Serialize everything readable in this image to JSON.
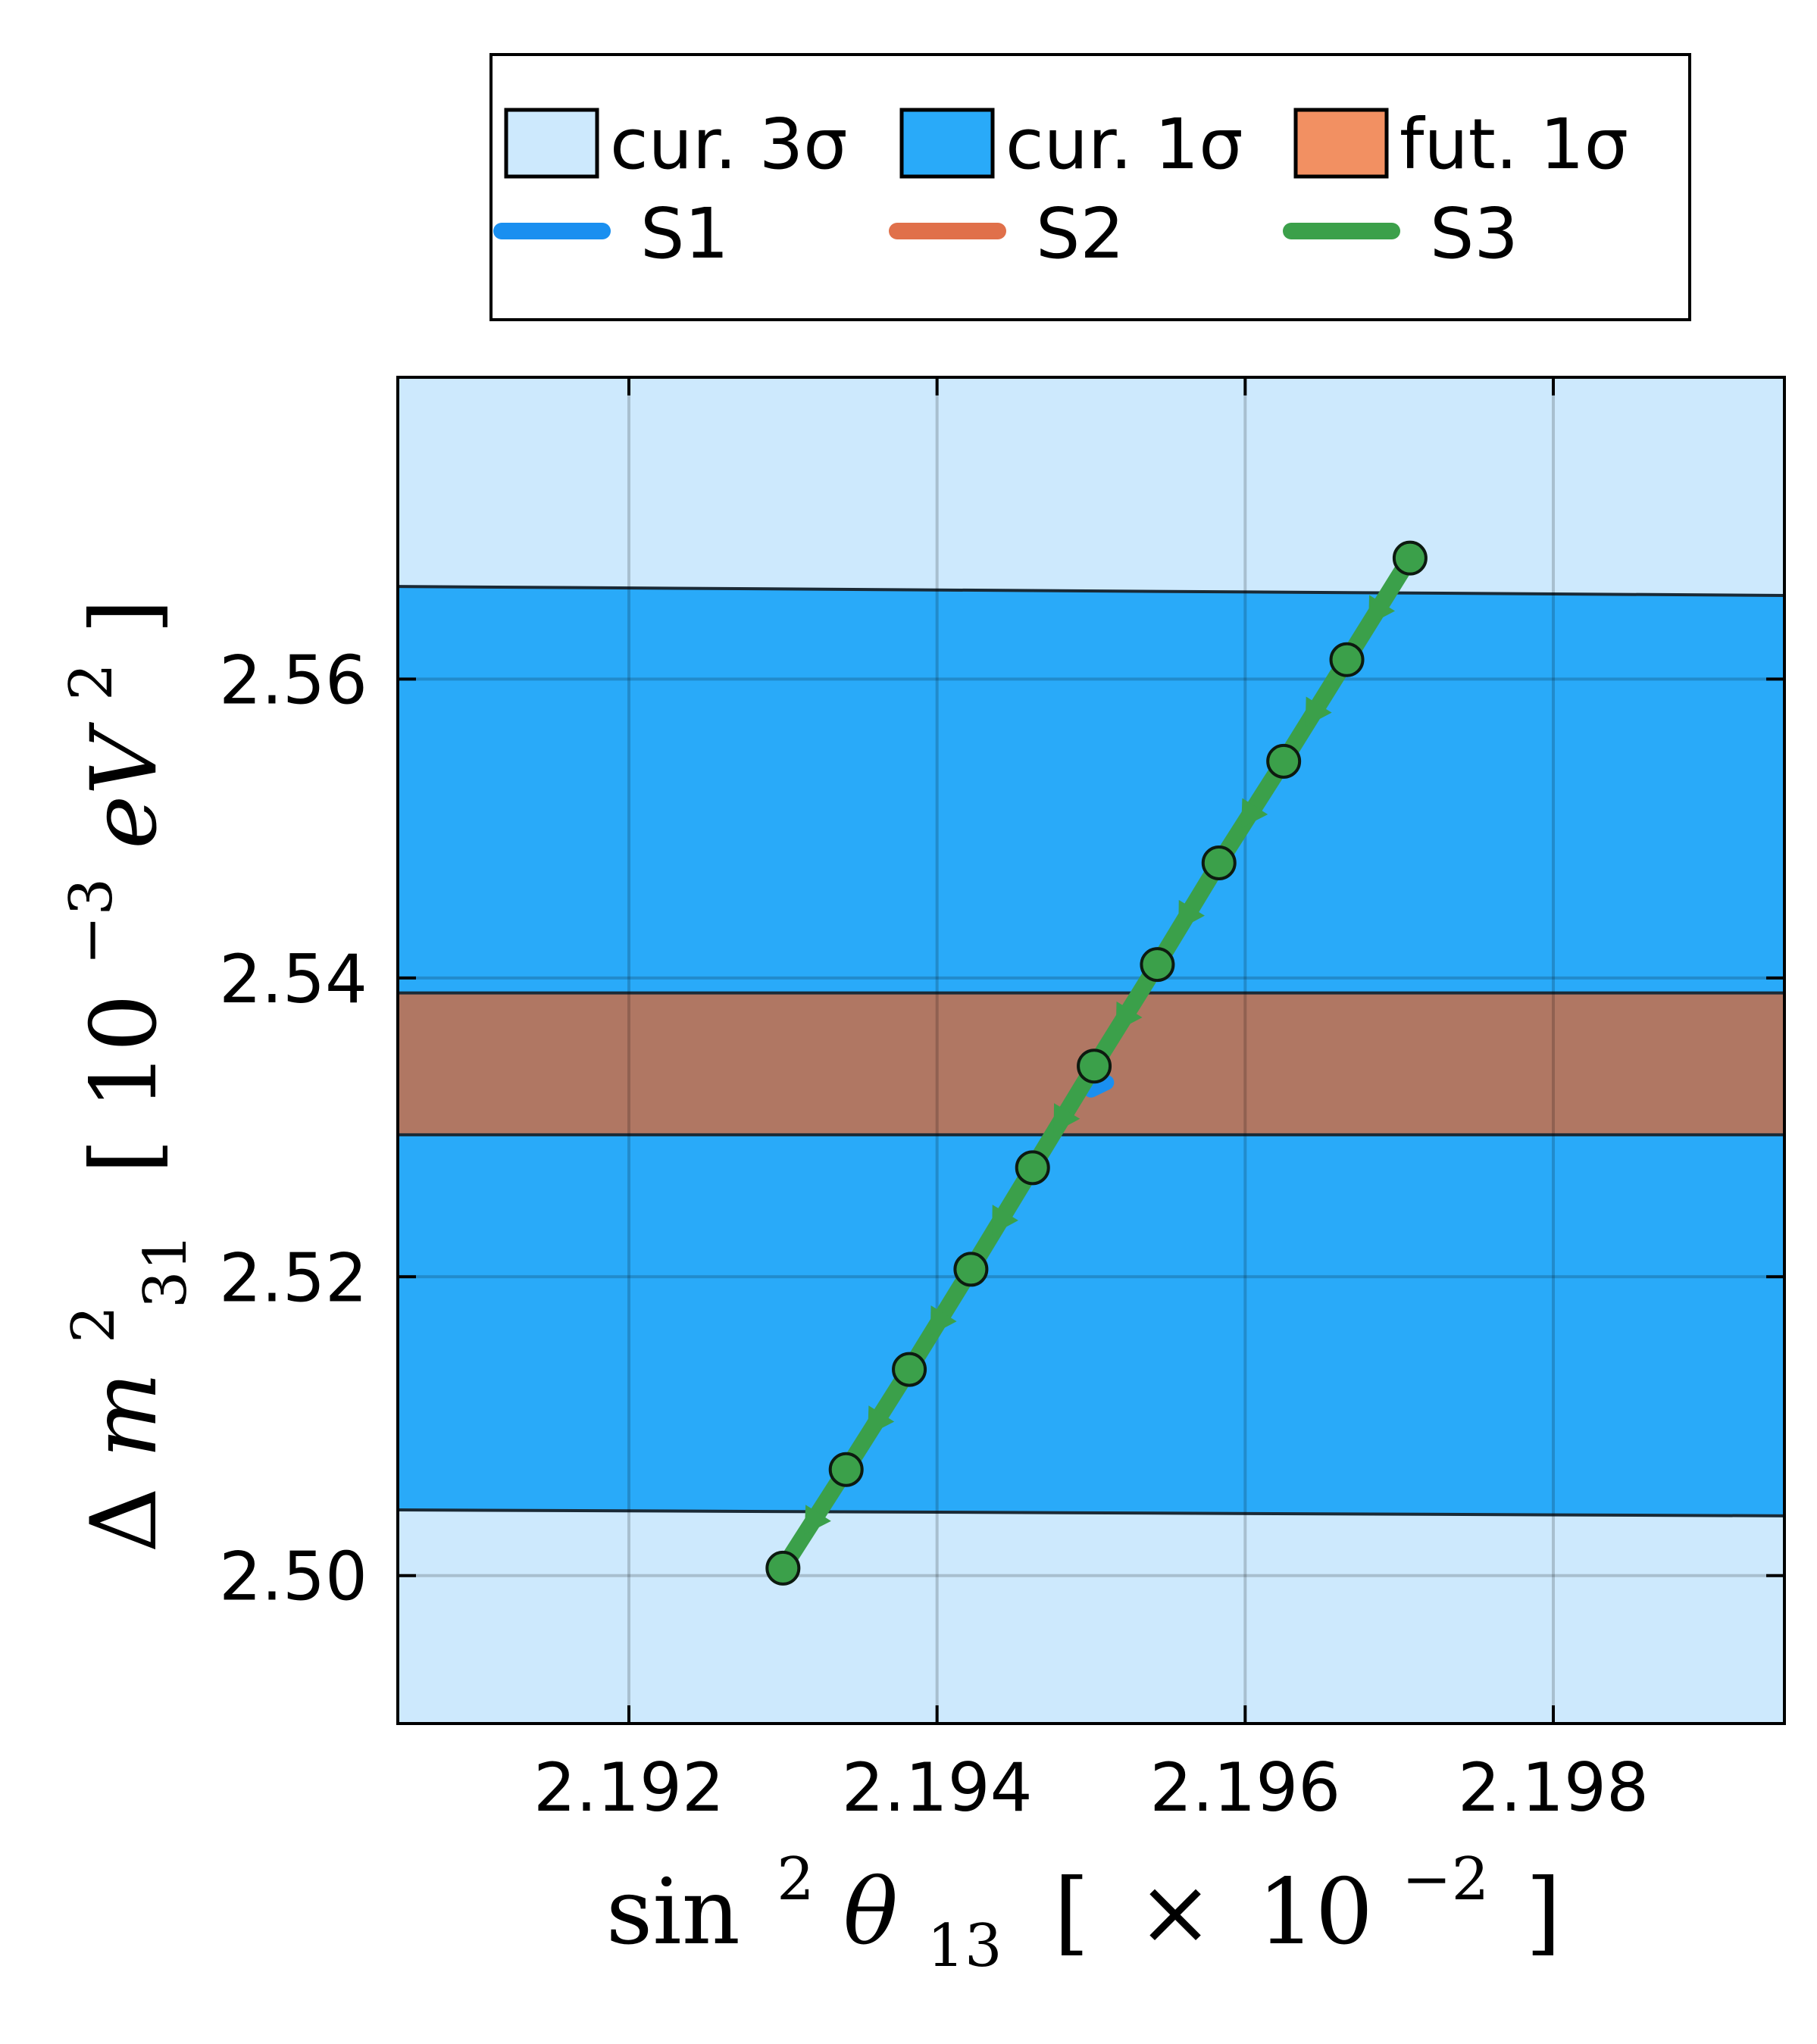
{
  "chart_data": {
    "type": "line",
    "xlabel": {
      "base": "sin",
      "sup": "2",
      "theta": "θ",
      "sub": "13",
      "bracket_l": "[",
      "times": "×",
      "ten": "10",
      "exp": "−2",
      "bracket_r": "]"
    },
    "ylabel": {
      "delta": "Δ",
      "m": "m",
      "sup": "2",
      "sub": "31",
      "bracket_l": "[",
      "ten": "10",
      "exp": "−3",
      "ev": "eV",
      "ev_sup": "2",
      "bracket_r": "]"
    },
    "xlim": [
      2.1905,
      2.1995
    ],
    "ylim": [
      2.4901,
      2.5802
    ],
    "xticks": [
      {
        "value": 2.192,
        "label": "2.192"
      },
      {
        "value": 2.194,
        "label": "2.194"
      },
      {
        "value": 2.196,
        "label": "2.196"
      },
      {
        "value": 2.198,
        "label": "2.198"
      }
    ],
    "yticks": [
      {
        "value": 2.5,
        "label": "2.50"
      },
      {
        "value": 2.52,
        "label": "2.52"
      },
      {
        "value": 2.54,
        "label": "2.54"
      },
      {
        "value": 2.56,
        "label": "2.56"
      }
    ],
    "grid": true,
    "bands": [
      {
        "name": "cur. 3σ",
        "color": "#cde9fd",
        "y_low": 2.4901,
        "y_high": 2.5802
      },
      {
        "name": "cur. 1σ",
        "color": "#29aaf9",
        "y_low_left": 2.5044,
        "y_low_right": 2.504,
        "y_high_left": 2.5662,
        "y_high_right": 2.5656
      },
      {
        "name": "fut. 1σ",
        "color": "#b07763",
        "legend_color": "#f29062",
        "y_low": 2.5295,
        "y_high": 2.539
      }
    ],
    "series": [
      {
        "name": "S1",
        "color": "#1a8ff0",
        "x": [
          2.195,
          2.1951
        ],
        "y": [
          2.5325,
          2.533
        ]
      },
      {
        "name": "S2",
        "color": "#e0704a",
        "x": [],
        "y": []
      },
      {
        "name": "S3",
        "color": "#3ba04a",
        "x": [
          2.193,
          2.19341,
          2.19382,
          2.19422,
          2.19462,
          2.19502,
          2.19543,
          2.19583,
          2.19625,
          2.19666,
          2.19707
        ],
        "y": [
          2.5005,
          2.5071,
          2.5138,
          2.5205,
          2.5273,
          2.5341,
          2.5409,
          2.5477,
          2.5545,
          2.5613,
          2.5681
        ]
      }
    ],
    "legend": {
      "position": "top",
      "patches": [
        "cur. 3σ",
        "cur. 1σ",
        "fut. 1σ"
      ],
      "lines": [
        "S1",
        "S2",
        "S3"
      ]
    }
  }
}
